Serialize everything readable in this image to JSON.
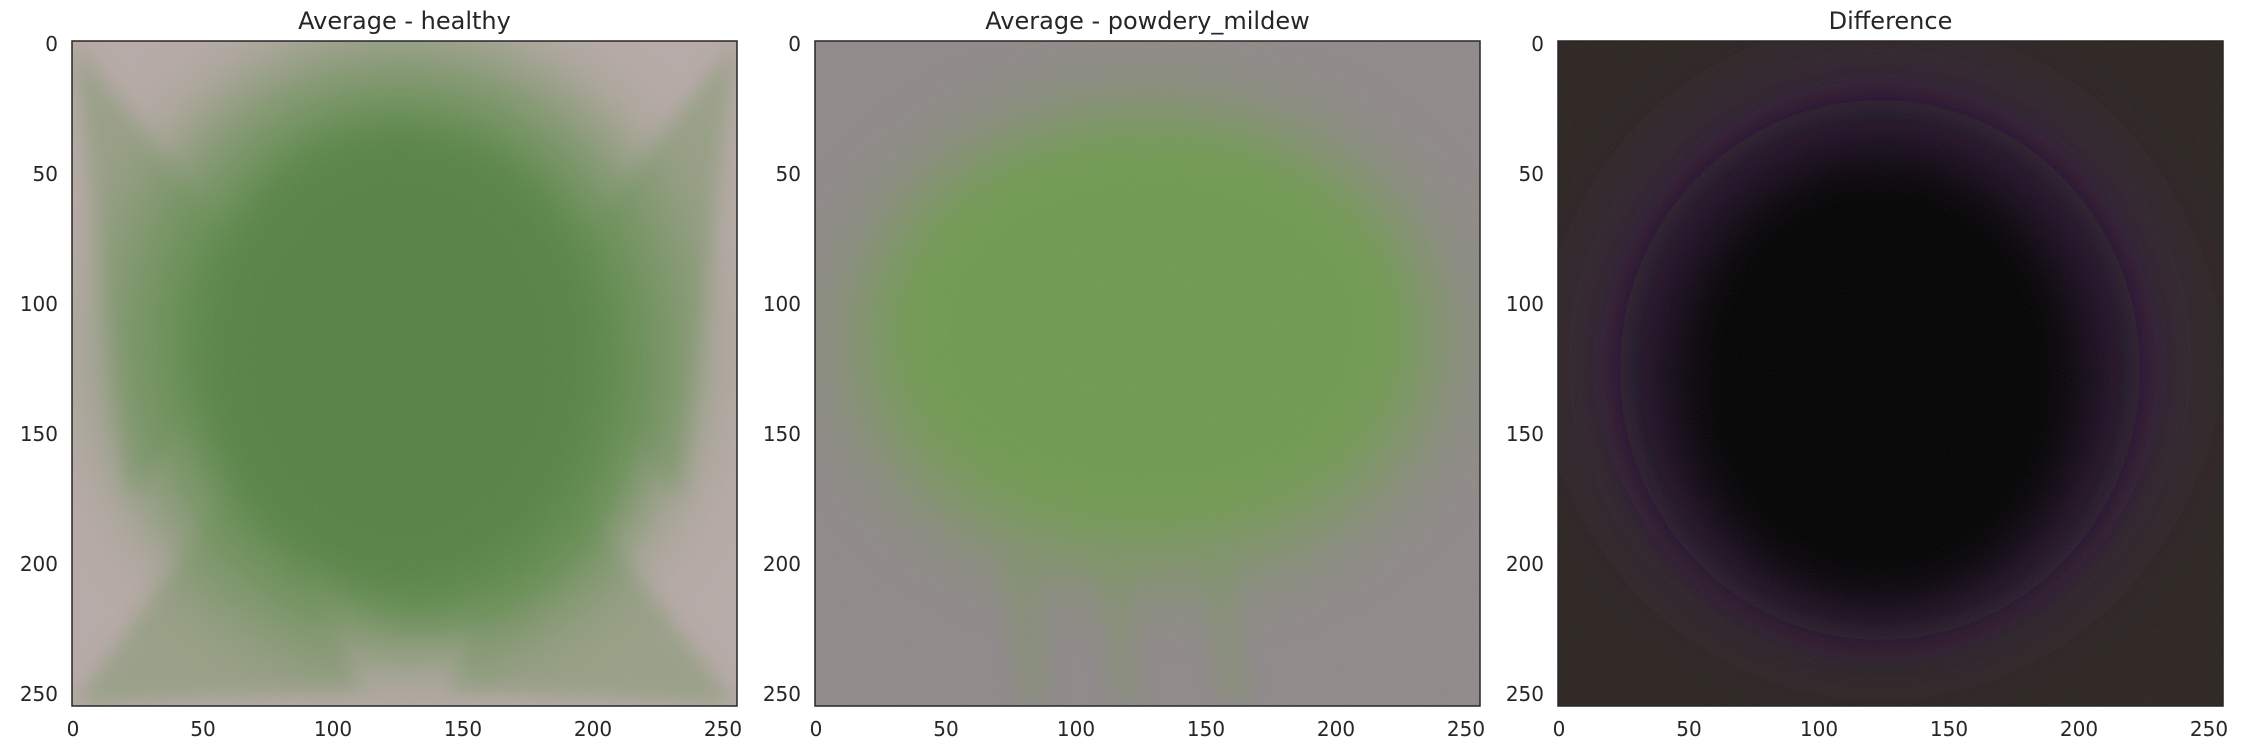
{
  "panels": [
    {
      "title": "Average - healthy",
      "x_ticks": [
        "0",
        "50",
        "100",
        "150",
        "200",
        "250"
      ],
      "y_ticks": [
        "0",
        "50",
        "100",
        "150",
        "200",
        "250"
      ],
      "image": {
        "background": "#b7a9a6",
        "leaf": "#5c8a47",
        "leaf_core": "#4f7e3e"
      }
    },
    {
      "title": "Average - powdery_mildew",
      "x_ticks": [
        "0",
        "50",
        "100",
        "150",
        "200",
        "250"
      ],
      "y_ticks": [
        "0",
        "50",
        "100",
        "150",
        "200",
        "250"
      ],
      "image": {
        "background": "#8d8787",
        "leaf": "#6f9a4e",
        "leaf_core": "#6a9a48"
      }
    },
    {
      "title": "Difference",
      "x_ticks": [
        "0",
        "50",
        "100",
        "150",
        "200",
        "250"
      ],
      "y_ticks": [
        "0",
        "50",
        "100",
        "150",
        "200",
        "250"
      ],
      "image": {
        "background": "#2a2320",
        "leaf": "#1a1024",
        "leaf_core": "#020104",
        "rim": "#3a2246"
      }
    }
  ],
  "axis_range": [
    0,
    256
  ]
}
